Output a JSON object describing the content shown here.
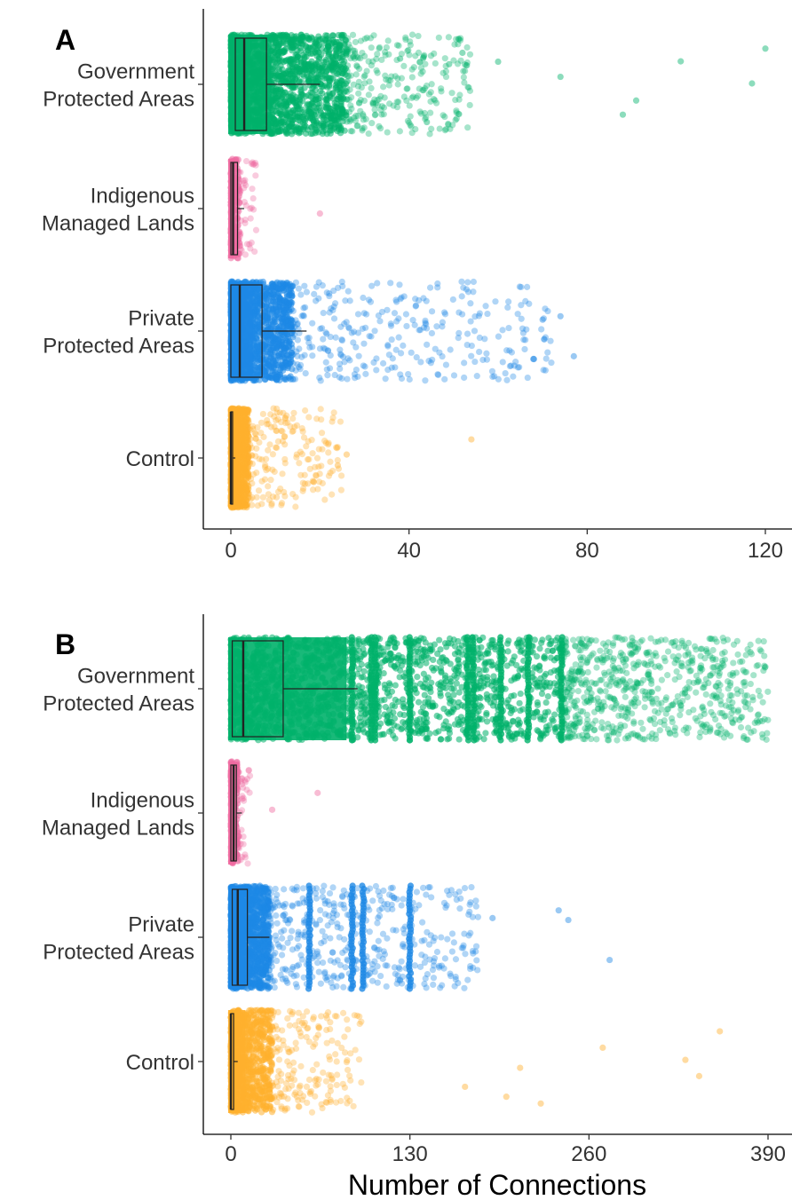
{
  "xlabel": "Number of Connections",
  "colors": {
    "Government Protected Areas": "#00b16a",
    "Indigenous Managed Lands": "#ef6aa0",
    "Private Protected Areas": "#1e88e5",
    "Control": "#ffb02e"
  },
  "chart_data": [
    {
      "type": "boxplot-jitter",
      "panel": "A",
      "title": "",
      "xlabel": "",
      "xlim": [
        -5,
        125
      ],
      "xticks": [
        "0",
        "40",
        "80",
        "120"
      ],
      "xtick_values": [
        0,
        40,
        80,
        120
      ],
      "categories": [
        {
          "label_lines": [
            "Government",
            "Protected Areas"
          ],
          "name": "Government Protected Areas",
          "box": {
            "lower_whisker": 0,
            "q1": 1,
            "median": 3,
            "q3": 8,
            "upper_whisker": 20
          },
          "dense_max": 26,
          "sparse_max": 54,
          "outliers": [
            49,
            74,
            88,
            91,
            101,
            117,
            120,
            52,
            60,
            38,
            44
          ]
        },
        {
          "label_lines": [
            "Indigenous",
            "Managed Lands"
          ],
          "name": "Indigenous Managed Lands",
          "box": {
            "lower_whisker": 0,
            "q1": 0,
            "median": 0.5,
            "q3": 1.5,
            "upper_whisker": 3
          },
          "dense_max": 2,
          "sparse_max": 6,
          "outliers": [
            20
          ]
        },
        {
          "label_lines": [
            "Private",
            "Protected Areas"
          ],
          "name": "Private Protected Areas",
          "box": {
            "lower_whisker": 0,
            "q1": 0,
            "median": 2,
            "q3": 7,
            "upper_whisker": 17
          },
          "dense_max": 14,
          "sparse_max": 72,
          "outliers": [
            77,
            74,
            70
          ]
        },
        {
          "label_lines": [
            "Control"
          ],
          "name": "Control",
          "box": {
            "lower_whisker": 0,
            "q1": 0,
            "median": 0,
            "q3": 0.3,
            "upper_whisker": 1
          },
          "dense_max": 4,
          "sparse_max": 25,
          "outliers": [
            24,
            26,
            54
          ]
        }
      ]
    },
    {
      "type": "boxplot-jitter",
      "panel": "B",
      "title": "",
      "xlabel": "Number of Connections",
      "xlim": [
        -12,
        408
      ],
      "xticks": [
        "0",
        "130",
        "260",
        "390"
      ],
      "xtick_values": [
        0,
        130,
        260,
        390
      ],
      "categories": [
        {
          "label_lines": [
            "Government",
            "Protected Areas"
          ],
          "name": "Government Protected Areas",
          "box": {
            "lower_whisker": 0,
            "q1": 1,
            "median": 9,
            "q3": 38,
            "upper_whisker": 92
          },
          "dense_max": 240,
          "sparse_max": 390,
          "columns": [
            88,
            102,
            105,
            130,
            172,
            176,
            196,
            216,
            240
          ]
        },
        {
          "label_lines": [
            "Indigenous",
            "Managed Lands"
          ],
          "name": "Indigenous Managed Lands",
          "box": {
            "lower_whisker": 0,
            "q1": 0,
            "median": 2,
            "q3": 4,
            "upper_whisker": 8
          },
          "dense_max": 5,
          "sparse_max": 14,
          "outliers": [
            30,
            63
          ]
        },
        {
          "label_lines": [
            "Private",
            "Protected Areas"
          ],
          "name": "Private Protected Areas",
          "box": {
            "lower_whisker": 0,
            "q1": 1,
            "median": 5,
            "q3": 12,
            "upper_whisker": 28
          },
          "dense_max": 28,
          "sparse_max": 180,
          "columns": [
            57,
            88,
            96,
            130
          ],
          "outliers": [
            245,
            275,
            238,
            190
          ]
        },
        {
          "label_lines": [
            "Control"
          ],
          "name": "Control",
          "box": {
            "lower_whisker": 0,
            "q1": 0,
            "median": 0,
            "q3": 2,
            "upper_whisker": 5
          },
          "dense_max": 30,
          "sparse_max": 95,
          "outliers": [
            200,
            210,
            225,
            270,
            330,
            340,
            355,
            170
          ]
        }
      ]
    }
  ]
}
